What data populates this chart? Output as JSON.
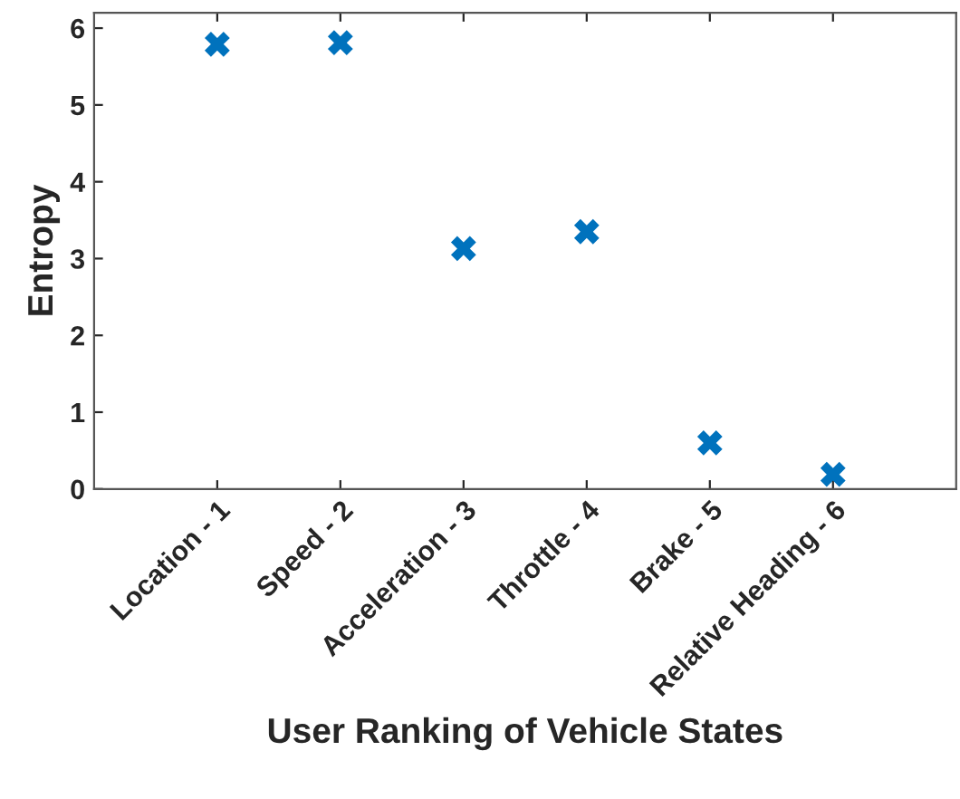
{
  "chart_data": {
    "type": "scatter",
    "xlabel": "User Ranking of Vehicle States",
    "ylabel": "Entropy",
    "categories": [
      "Location - 1",
      "Speed - 2",
      "Acceleration - 3",
      "Throttle - 4",
      "Brake - 5",
      "Relative Heading - 6"
    ],
    "values": [
      5.79,
      5.81,
      3.13,
      3.35,
      0.6,
      0.19
    ],
    "color": "#0072bd",
    "marker": "cross",
    "ylim": [
      0,
      6.2
    ],
    "yticks": [
      0,
      1,
      2,
      3,
      4,
      5,
      6
    ],
    "grid": false,
    "legend": false
  }
}
